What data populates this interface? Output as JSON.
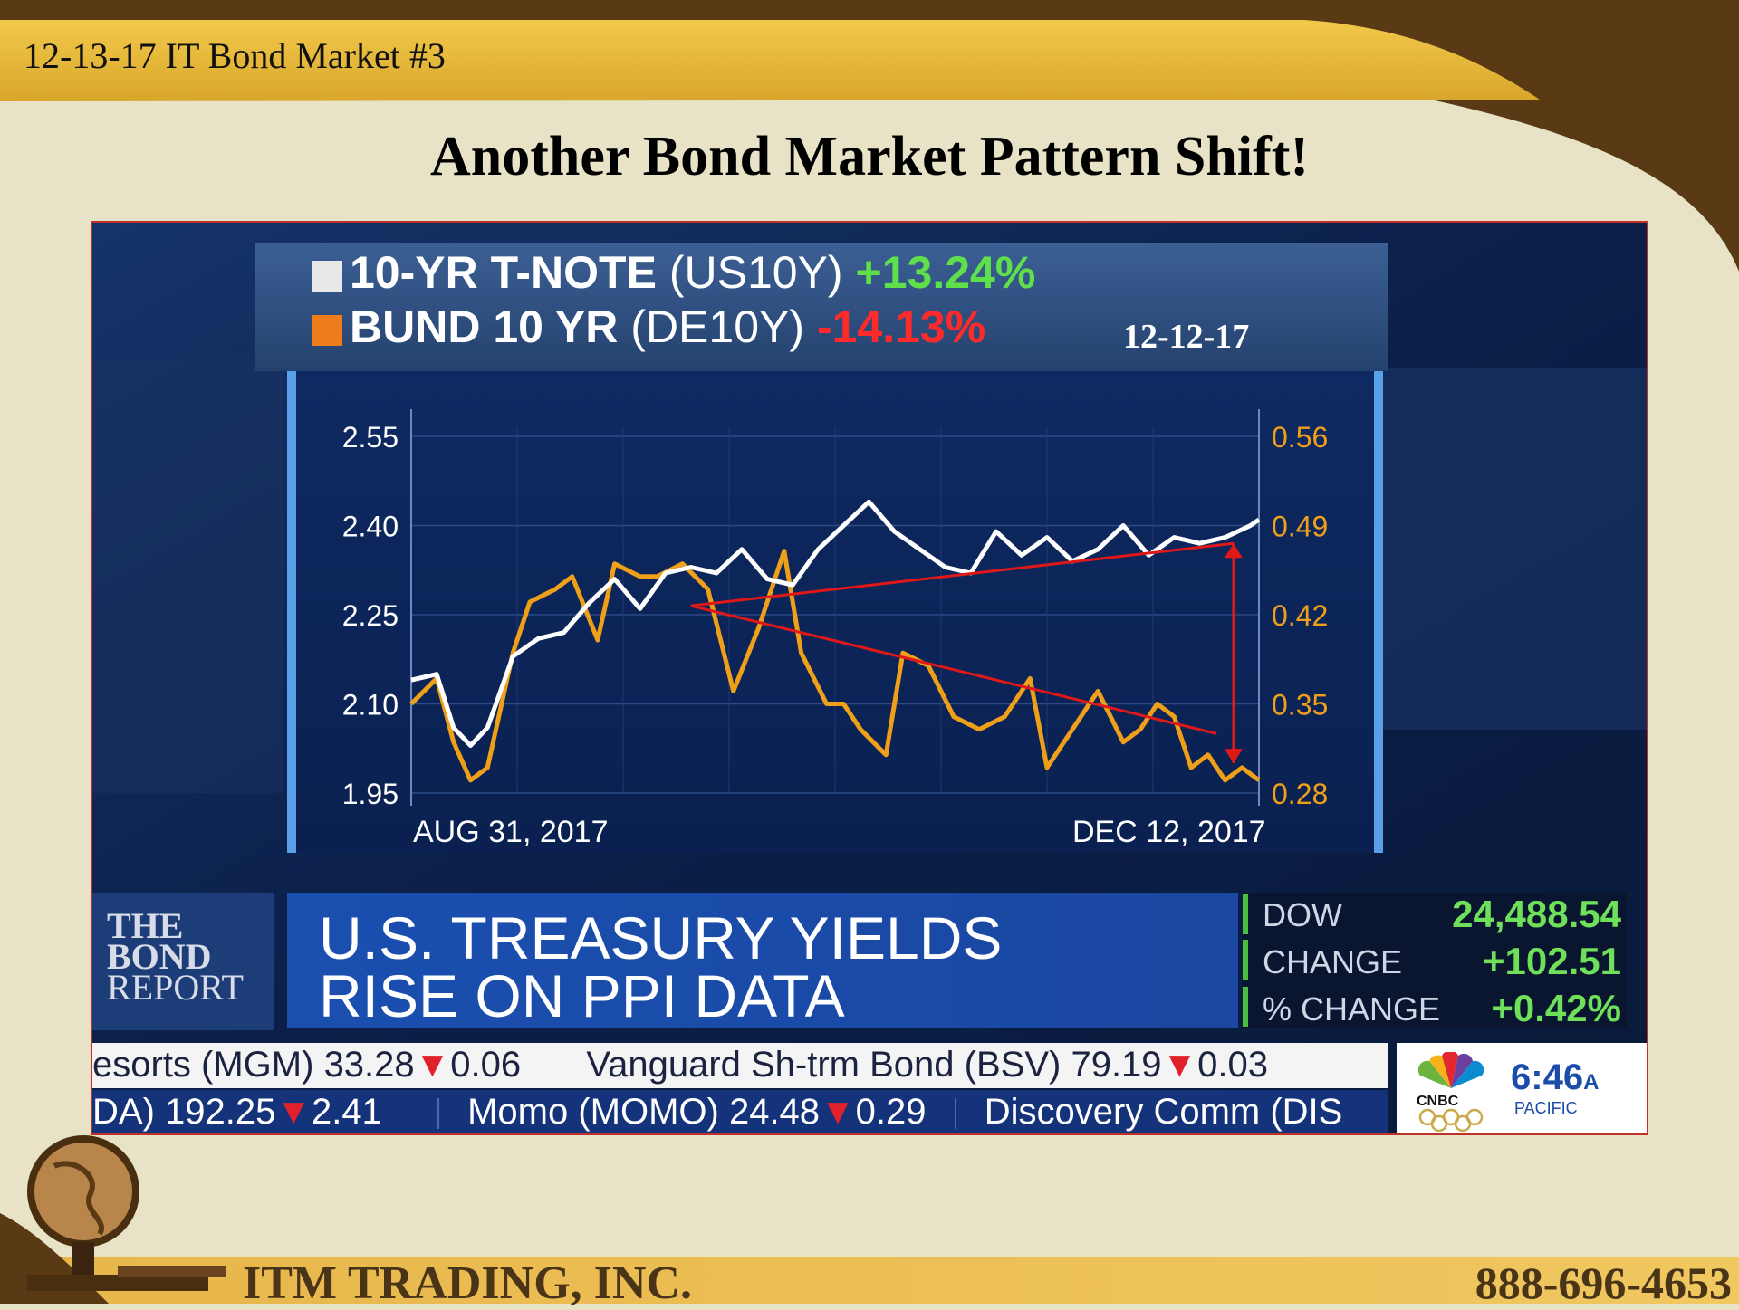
{
  "header": {
    "title": "12-13-17 IT Bond Market #3"
  },
  "slide": {
    "title": "Another Bond Market Pattern Shift!"
  },
  "screen": {
    "date_stamp": "12-12-17",
    "headline": [
      "U.S. TREASURY YIELDS",
      "RISE ON PPI DATA"
    ],
    "bond_report_logo": [
      "THE",
      "BOND",
      "REPORT"
    ],
    "market": [
      {
        "label": "DOW",
        "value": "24,488.54"
      },
      {
        "label": "CHANGE",
        "value": "+102.51"
      },
      {
        "label": "% CHANGE",
        "value": "+0.42%"
      }
    ],
    "ticker_top": [
      {
        "name": "esorts (MGM)",
        "price": "33.28",
        "change": "0.06"
      },
      {
        "name": "Vanguard Sh-trm Bond (BSV)",
        "price": "79.19",
        "change": "0.03"
      }
    ],
    "ticker_bottom": [
      {
        "name": "DA)",
        "price": "192.25",
        "change": "2.41"
      },
      {
        "name": "Momo (MOMO)",
        "price": "24.48",
        "change": "0.29"
      },
      {
        "name": "Discovery Comm (DIS",
        "price": "",
        "change": ""
      }
    ],
    "network_logo": "CNBC",
    "clock": {
      "time": "6:46",
      "ampm": "A",
      "zone": "PACIFIC"
    }
  },
  "chart_data": {
    "type": "line",
    "series": [
      {
        "name": "10-YR T-NOTE",
        "symbol": "(US10Y)",
        "change": "+13.24%",
        "color": "#ffffff",
        "axis": "left",
        "x": [
          0,
          3,
          5,
          7,
          9,
          12,
          15,
          18,
          21,
          24,
          27,
          30,
          33,
          36,
          39,
          42,
          45,
          48,
          51,
          54,
          57,
          60,
          63,
          66,
          69,
          72,
          75,
          78,
          81,
          84,
          87,
          90,
          93,
          96,
          99,
          100
        ],
        "values": [
          2.14,
          2.15,
          2.06,
          2.03,
          2.06,
          2.18,
          2.21,
          2.22,
          2.27,
          2.31,
          2.26,
          2.32,
          2.33,
          2.32,
          2.36,
          2.31,
          2.3,
          2.36,
          2.4,
          2.44,
          2.39,
          2.36,
          2.33,
          2.32,
          2.39,
          2.35,
          2.38,
          2.34,
          2.36,
          2.4,
          2.35,
          2.38,
          2.37,
          2.38,
          2.4,
          2.41
        ]
      },
      {
        "name": "BUND 10 YR",
        "symbol": "(DE10Y)",
        "change": "-14.13%",
        "color": "#f0a018",
        "axis": "right",
        "x": [
          0,
          3,
          5,
          7,
          9,
          12,
          14,
          17,
          19,
          22,
          24,
          27,
          29,
          32,
          35,
          38,
          41,
          44,
          46,
          49,
          51,
          53,
          56,
          58,
          61,
          64,
          67,
          70,
          73,
          75,
          78,
          81,
          84,
          86,
          88,
          90,
          92,
          94,
          96,
          98,
          100
        ],
        "values": [
          0.35,
          0.37,
          0.32,
          0.29,
          0.3,
          0.39,
          0.43,
          0.44,
          0.45,
          0.4,
          0.46,
          0.45,
          0.45,
          0.46,
          0.44,
          0.36,
          0.41,
          0.47,
          0.39,
          0.35,
          0.35,
          0.33,
          0.31,
          0.39,
          0.38,
          0.34,
          0.33,
          0.34,
          0.37,
          0.3,
          0.33,
          0.36,
          0.32,
          0.33,
          0.35,
          0.34,
          0.3,
          0.31,
          0.29,
          0.3,
          0.29
        ]
      }
    ],
    "x_labels": [
      "AUG 31, 2017",
      "DEC 12, 2017"
    ],
    "y_left": {
      "ticks": [
        "2.55",
        "2.40",
        "2.25",
        "2.10",
        "1.95"
      ],
      "range": [
        1.95,
        2.55
      ]
    },
    "y_right": {
      "ticks": [
        "0.56",
        "0.49",
        "0.42",
        "0.35",
        "0.28"
      ],
      "range": [
        0.28,
        0.56
      ]
    },
    "annotations": "red divergence arrows",
    "grid": true
  },
  "footer": {
    "company": "ITM TRADING, INC.",
    "phone": "888-696-4653"
  }
}
